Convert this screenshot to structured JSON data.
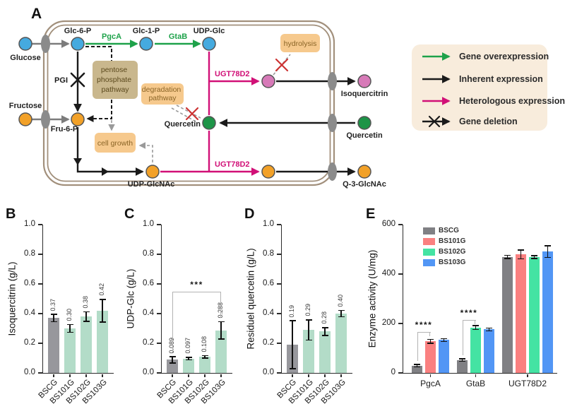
{
  "panels": {
    "A": "A"
  },
  "colors": {
    "gene_overexpression_green": "#1ea24a",
    "heterologous_magenta": "#d11077",
    "inherent_black": "#1a1a1a",
    "gene_deletion_red": "#cc3333",
    "membrane_brown": "#a2907c",
    "transporter_gray": "#8b8b8b",
    "node_blue": "#45aadf",
    "node_orange": "#f2a128",
    "node_green": "#1d9447",
    "node_pink": "#d77ab8",
    "legend_bg": "#f8ecdc",
    "bar_gray": "#97979c",
    "bar_mint": "#b3dcc8"
  },
  "panelA": {
    "label": "A",
    "nodes": {
      "glucose": "Glucose",
      "fructose": "Fructose",
      "glc6p": "Glc-6-P",
      "glc1p": "Glc-1-P",
      "udpglc": "UDP-Glc",
      "fru6p": "Fru-6-P",
      "udpglcnac": "UDP-GlcNAc",
      "quercetin_in": "Quercetin",
      "isoquercitrin_out": "Isoquercitrin",
      "quercetin_out": "Quercetin",
      "q3glcnac_out": "Q-3-GlcNAc"
    },
    "enzymes": {
      "pgca": "PgcA",
      "gtab": "GtaB",
      "pgi": "PGI",
      "ugt78d2": "UGT78D2"
    },
    "boxes": {
      "pentose_lines": [
        "pentose",
        "phosphate",
        "pathway"
      ],
      "degradation_lines": [
        "degradation",
        "pathway"
      ],
      "cell_growth": "cell growth",
      "hydrolysis": "hydrolysis"
    },
    "legend": {
      "items": [
        {
          "key": "gene-overexpression",
          "label": "Gene overexpression"
        },
        {
          "key": "inherent-expression",
          "label": "Inherent expression"
        },
        {
          "key": "heterologous-expression",
          "label": "Heterologous expression"
        },
        {
          "key": "gene-deletion",
          "label": "Gene deletion"
        }
      ]
    }
  },
  "chart_data": [
    {
      "panel": "B",
      "type": "bar",
      "ylabel": "Isoquercitrin (g/L)",
      "ylim": [
        0,
        1.0
      ],
      "yticks": [
        "0.0",
        "0.2",
        "0.4",
        "0.6",
        "0.8",
        "1.0"
      ],
      "categories": [
        "BSCG",
        "BS101G",
        "BS102G",
        "BS103G"
      ],
      "values": [
        0.37,
        0.3,
        0.38,
        0.42
      ],
      "errors": [
        0.028,
        0.03,
        0.035,
        0.08
      ],
      "value_labels": [
        "0.37",
        "0.30",
        "0.38",
        "0.42"
      ],
      "bar_colors": [
        "#97979c",
        "#b3dcc8",
        "#b3dcc8",
        "#b3dcc8"
      ],
      "grid": false,
      "legend_position": "none"
    },
    {
      "panel": "C",
      "type": "bar",
      "ylabel": "UDP-Glc (g/L)",
      "ylim": [
        0,
        1.0
      ],
      "yticks": [
        "0.0",
        "0.2",
        "0.4",
        "0.6",
        "0.8",
        "1.0"
      ],
      "categories": [
        "BSCG",
        "BS101G",
        "BS102G",
        "BS103G"
      ],
      "values": [
        0.089,
        0.097,
        0.108,
        0.288
      ],
      "errors": [
        0.025,
        0.013,
        0.012,
        0.062
      ],
      "value_labels": [
        "0.089",
        "0.097",
        "0.108",
        "0.288"
      ],
      "bar_colors": [
        "#97979c",
        "#b3dcc8",
        "#b3dcc8",
        "#b3dcc8"
      ],
      "significance": [
        {
          "from": 0,
          "to": 3,
          "y": 0.55,
          "label": "***"
        }
      ],
      "grid": false,
      "legend_position": "none"
    },
    {
      "panel": "D",
      "type": "bar",
      "ylabel": "Residuel quercetin (g/L)",
      "ylim": [
        0,
        1.0
      ],
      "yticks": [
        "0.0",
        "0.2",
        "0.4",
        "0.6",
        "0.8",
        "1.0"
      ],
      "categories": [
        "BSCG",
        "BS101G",
        "BS102G",
        "BS103G"
      ],
      "values": [
        0.19,
        0.29,
        0.28,
        0.4
      ],
      "errors": [
        0.165,
        0.072,
        0.03,
        0.025
      ],
      "value_labels": [
        "0.19",
        "0.29",
        "0.28",
        "0.40"
      ],
      "bar_colors": [
        "#97979c",
        "#b3dcc8",
        "#b3dcc8",
        "#b3dcc8"
      ],
      "grid": false,
      "legend_position": "none"
    },
    {
      "panel": "E",
      "type": "grouped-bar",
      "ylabel": "Enzyme activity (U/mg)",
      "ylim": [
        0,
        600
      ],
      "yticks": [
        "0",
        "200",
        "400",
        "600"
      ],
      "groups": [
        "PgcA",
        "GtaB",
        "UGT78D2"
      ],
      "series": [
        {
          "name": "BSCG",
          "color": "#808084",
          "values": [
            29,
            52,
            469
          ],
          "errors": [
            7,
            7,
            9
          ]
        },
        {
          "name": "BS101G",
          "color": "#fa8080",
          "values": [
            128,
            null,
            479
          ],
          "errors": [
            10,
            null,
            20
          ]
        },
        {
          "name": "BS102G",
          "color": "#44e3a3",
          "values": [
            null,
            183,
            469
          ],
          "errors": [
            null,
            10,
            8
          ]
        },
        {
          "name": "BS103G",
          "color": "#5296f5",
          "values": [
            133,
            176,
            491
          ],
          "errors": [
            8,
            8,
            26
          ]
        }
      ],
      "significance": [
        {
          "group": 0,
          "from": 0,
          "to": 1,
          "y": 166,
          "label": "****"
        },
        {
          "group": 1,
          "from": 0,
          "to": 2,
          "y": 215,
          "label": "****"
        }
      ],
      "grid": false,
      "legend_position": "top-left"
    }
  ]
}
